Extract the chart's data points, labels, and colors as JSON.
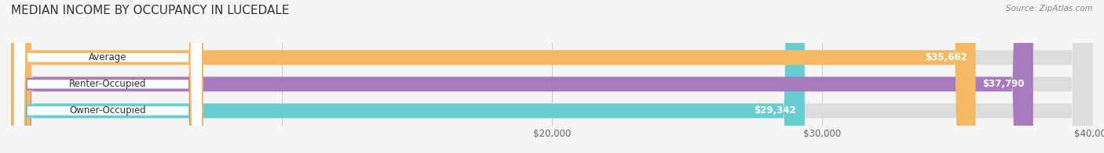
{
  "title": "MEDIAN INCOME BY OCCUPANCY IN LUCEDALE",
  "source": "Source: ZipAtlas.com",
  "categories": [
    "Owner-Occupied",
    "Renter-Occupied",
    "Average"
  ],
  "values": [
    29342,
    37790,
    35662
  ],
  "bar_colors": [
    "#68cdd0",
    "#a87bbf",
    "#f5b963"
  ],
  "bar_bg_color": "#dcdcdc",
  "xlim": [
    0,
    40000
  ],
  "value_labels": [
    "$29,342",
    "$37,790",
    "$35,662"
  ],
  "title_fontsize": 11,
  "bar_height": 0.55,
  "figsize": [
    14.06,
    1.96
  ],
  "dpi": 100
}
